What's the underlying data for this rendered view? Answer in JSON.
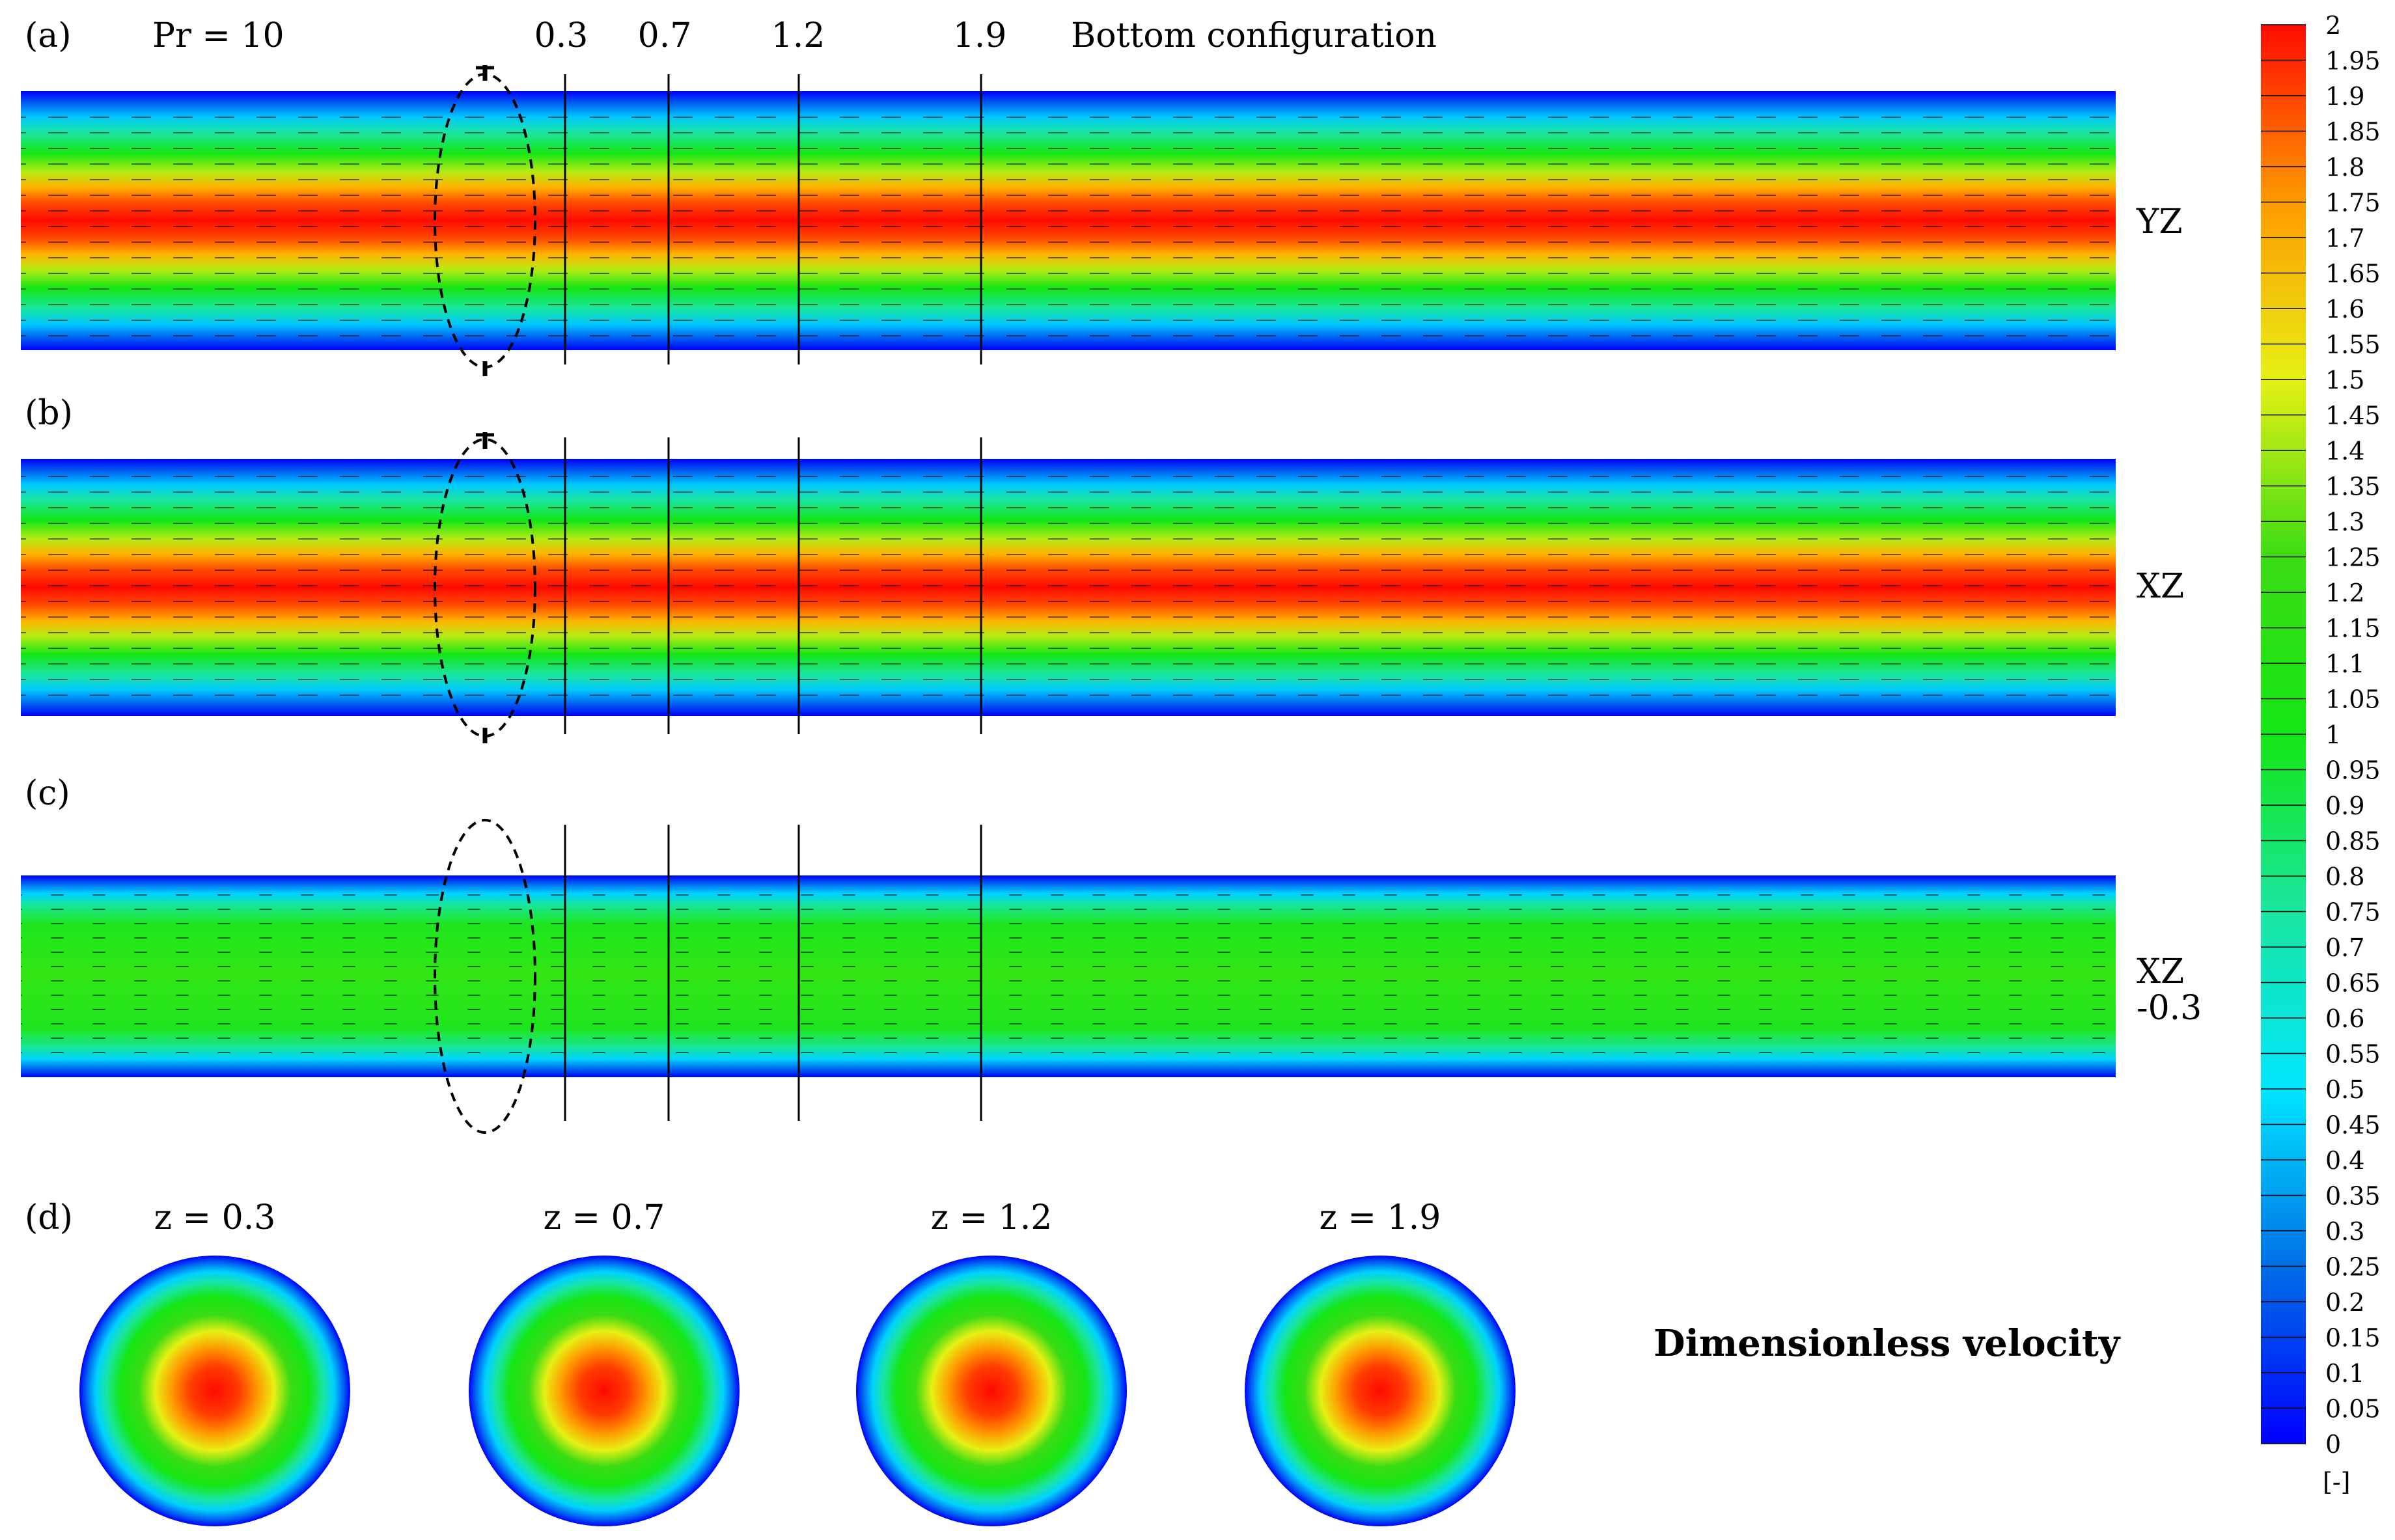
{
  "figure": {
    "panel_labels": [
      "(a)",
      "(b)",
      "(c)",
      "(d)"
    ],
    "prandtl_label": "Pr = 10",
    "configuration_title": "Bottom configuration",
    "section_markers": [
      "0.3",
      "0.7",
      "1.2",
      "1.9"
    ],
    "plane_labels": {
      "a": "YZ",
      "b": "XZ",
      "c_line1": "XZ",
      "c_line2": "-0.3"
    },
    "cross_section_labels": [
      "z = 0.3",
      "z = 0.7",
      "z = 1.2",
      "z = 1.9"
    ],
    "quantity_label": "Dimensionless velocity"
  },
  "colorbar": {
    "min": 0,
    "max": 2,
    "step": 0.05,
    "unit": "[-]",
    "tick_labels": [
      "2",
      "1.95",
      "1.9",
      "1.85",
      "1.8",
      "1.75",
      "1.7",
      "1.65",
      "1.6",
      "1.55",
      "1.5",
      "1.45",
      "1.4",
      "1.35",
      "1.3",
      "1.25",
      "1.2",
      "1.15",
      "1.1",
      "1.05",
      "1",
      "0.95",
      "0.9",
      "0.85",
      "0.8",
      "0.75",
      "0.7",
      "0.65",
      "0.6",
      "0.55",
      "0.5",
      "0.45",
      "0.4",
      "0.35",
      "0.3",
      "0.25",
      "0.2",
      "0.15",
      "0.1",
      "0.05",
      "0"
    ],
    "colors": {
      "v0": "#0000ff",
      "v025": "#006ee6",
      "v05": "#00e6ff",
      "v075": "#19e6a0",
      "v1": "#14e614",
      "v125": "#3cdc14",
      "v15": "#e6f014",
      "v175": "#ff9b00",
      "v2": "#ff0a00"
    }
  }
}
